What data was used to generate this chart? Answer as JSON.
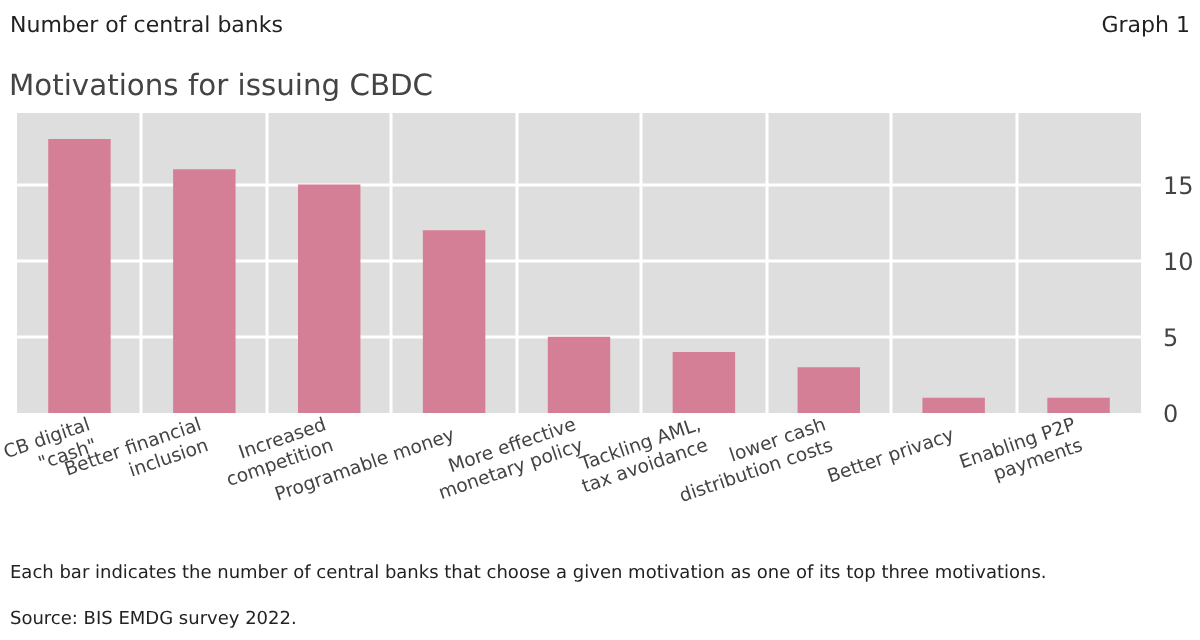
{
  "chart_data": {
    "type": "bar",
    "title": "Motivations for issuing CBDC",
    "ylabel": "Number of central banks",
    "categories": [
      "CB digital\n\"cash\"",
      "Better financial\ninclusion",
      "Increased\ncompetition",
      "Programable money",
      "More effective\nmonetary policy",
      "Tackling AML,\ntax avoidance",
      "lower cash\ndistribution costs",
      "Better privacy",
      "Enabling P2P\npayments"
    ],
    "values": [
      18,
      16,
      15,
      12,
      5,
      4,
      3,
      1,
      1
    ],
    "color": "#d47f95",
    "ylim": [
      0,
      19.7
    ],
    "yticks": [
      0,
      5,
      10,
      15
    ],
    "grid": true,
    "annotations": [
      "Graph 1",
      "Each bar indicates the number of central banks that choose a given motivation as one of its top three motivations.",
      "Source: BIS EMDG survey 2022."
    ]
  }
}
